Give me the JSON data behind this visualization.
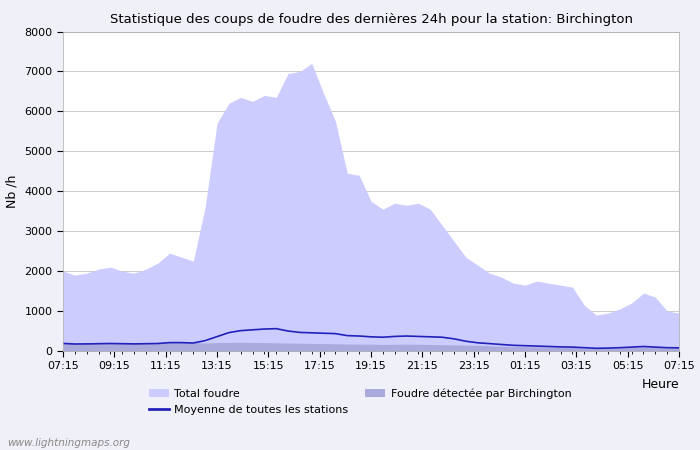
{
  "title": "Statistique des coups de foudre des dernières 24h pour la station: Birchington",
  "xlabel": "Heure",
  "ylabel": "Nb /h",
  "ylim": [
    0,
    8000
  ],
  "yticks": [
    0,
    1000,
    2000,
    3000,
    4000,
    5000,
    6000,
    7000,
    8000
  ],
  "xtick_labels": [
    "07:15",
    "09:15",
    "11:15",
    "13:15",
    "15:15",
    "17:15",
    "19:15",
    "21:15",
    "23:15",
    "01:15",
    "03:15",
    "05:15",
    "07:15"
  ],
  "watermark": "www.lightningmaps.org",
  "total_foudre_color": "#ccccff",
  "birchington_color": "#aaaadd",
  "mean_line_color": "#2222bb",
  "background_color": "#f0f0f8",
  "plot_bg_color": "#ffffff",
  "legend_total": "Total foudre",
  "legend_mean": "Moyenne de toutes les stations",
  "legend_birch": "Foudre détectée par Birchington",
  "total_foudre": [
    2000,
    1900,
    1950,
    2050,
    2100,
    2000,
    1950,
    2050,
    2200,
    2450,
    2350,
    2250,
    3600,
    5700,
    6200,
    6350,
    6250,
    6400,
    6350,
    6950,
    7000,
    7200,
    6450,
    5750,
    4450,
    4400,
    3750,
    3550,
    3700,
    3650,
    3700,
    3550,
    3150,
    2750,
    2350,
    2150,
    1950,
    1850,
    1700,
    1650,
    1750,
    1700,
    1650,
    1600,
    1150,
    900,
    950,
    1050,
    1200,
    1450,
    1350,
    1000,
    950
  ],
  "birchington": [
    200,
    190,
    195,
    200,
    205,
    200,
    195,
    200,
    210,
    220,
    215,
    210,
    200,
    210,
    215,
    220,
    215,
    210,
    205,
    200,
    195,
    190,
    185,
    180,
    175,
    173,
    170,
    165,
    168,
    172,
    168,
    163,
    158,
    153,
    148,
    143,
    133,
    123,
    113,
    108,
    103,
    98,
    93,
    88,
    73,
    63,
    68,
    78,
    93,
    103,
    93,
    78,
    73
  ],
  "mean_line": [
    190,
    175,
    178,
    183,
    188,
    183,
    178,
    183,
    188,
    210,
    210,
    200,
    260,
    360,
    460,
    510,
    530,
    550,
    560,
    500,
    465,
    455,
    445,
    435,
    385,
    375,
    355,
    345,
    365,
    375,
    365,
    355,
    345,
    305,
    245,
    205,
    185,
    163,
    143,
    133,
    123,
    113,
    103,
    98,
    83,
    68,
    73,
    83,
    98,
    113,
    98,
    83,
    78
  ]
}
